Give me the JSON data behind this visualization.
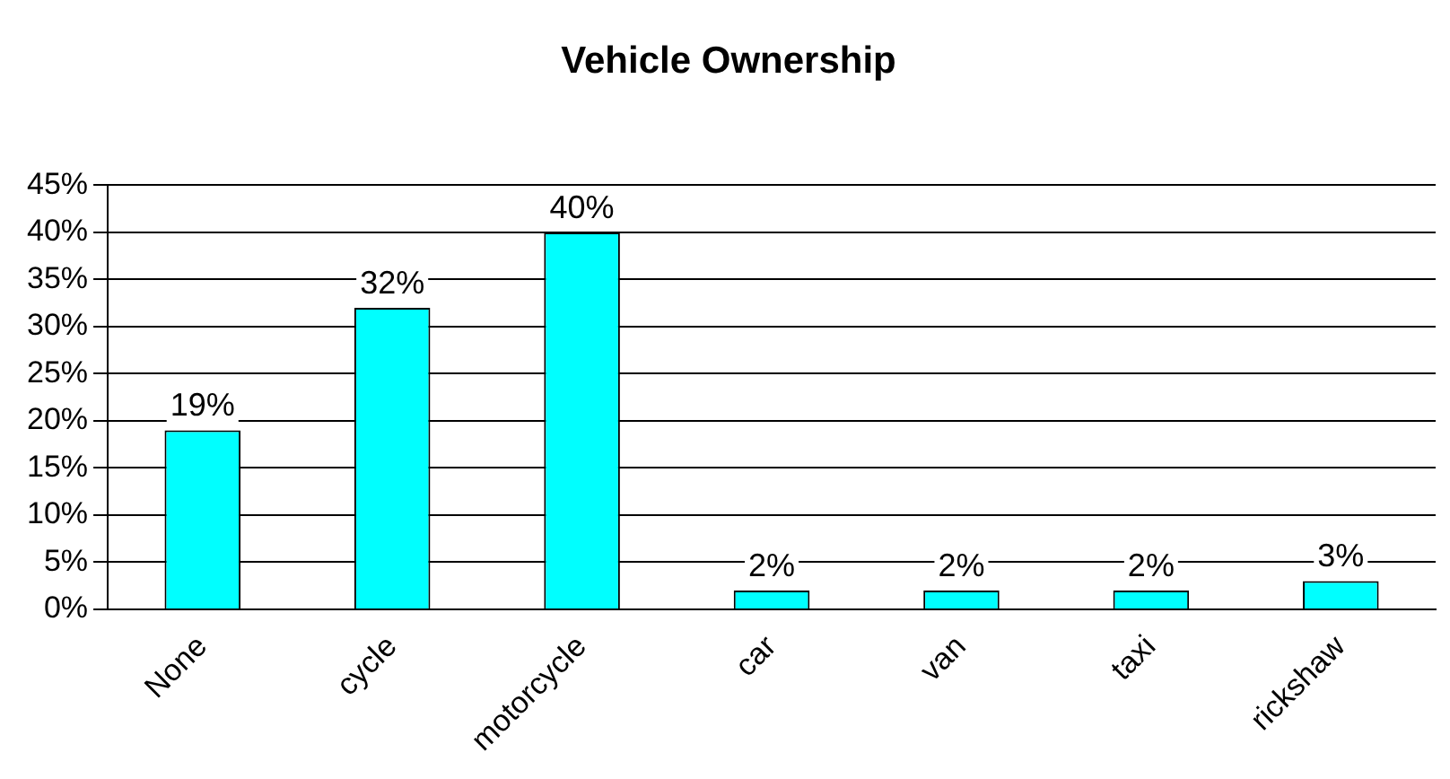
{
  "chart_data": {
    "type": "bar",
    "title": "Vehicle Ownership",
    "categories": [
      "None",
      "cycle",
      "motorcycle",
      "car",
      "van",
      "taxi",
      "rickshaw"
    ],
    "values": [
      19,
      32,
      40,
      2,
      2,
      2,
      3
    ],
    "value_labels": [
      "19%",
      "32%",
      "40%",
      "2%",
      "2%",
      "2%",
      "3%"
    ],
    "color": "#00ffff",
    "ylim": [
      0,
      45
    ],
    "yticks": [
      {
        "value": 0,
        "label": "0%"
      },
      {
        "value": 5,
        "label": "5%"
      },
      {
        "value": 10,
        "label": "10%"
      },
      {
        "value": 15,
        "label": "15%"
      },
      {
        "value": 20,
        "label": "20%"
      },
      {
        "value": 25,
        "label": "25%"
      },
      {
        "value": 30,
        "label": "30%"
      },
      {
        "value": 35,
        "label": "35%"
      },
      {
        "value": 40,
        "label": "40%"
      },
      {
        "value": 45,
        "label": "45%"
      }
    ],
    "grid": "y",
    "legend": false
  }
}
